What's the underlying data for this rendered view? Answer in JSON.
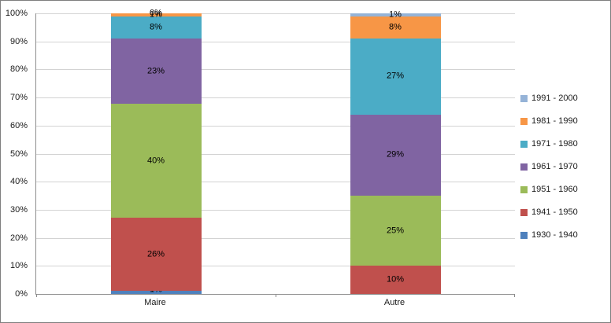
{
  "chart_data": {
    "type": "bar",
    "subtype": "stacked-100-percent",
    "title": "",
    "categories": [
      "Maire",
      "Autre"
    ],
    "series": [
      {
        "name": "1930 - 1940",
        "color": "#4F81BD",
        "values": [
          1,
          0
        ]
      },
      {
        "name": "1941 - 1950",
        "color": "#C0504D",
        "values": [
          26,
          10
        ]
      },
      {
        "name": "1951 - 1960",
        "color": "#9BBB59",
        "values": [
          40,
          25
        ]
      },
      {
        "name": "1961 - 1970",
        "color": "#8064A2",
        "values": [
          23,
          29
        ]
      },
      {
        "name": "1971 - 1980",
        "color": "#4BACC6",
        "values": [
          8,
          27
        ]
      },
      {
        "name": "1981 - 1990",
        "color": "#F79646",
        "values": [
          1,
          8
        ]
      },
      {
        "name": "1991 - 2000",
        "color": "#95B3D7",
        "values": [
          0,
          1
        ]
      }
    ],
    "label_suffix": "%",
    "y_ticks": [
      "0%",
      "10%",
      "20%",
      "30%",
      "40%",
      "50%",
      "60%",
      "70%",
      "80%",
      "90%",
      "100%"
    ],
    "ylim": [
      0,
      100
    ],
    "grid": true,
    "legend_position": "right",
    "legend_order": "reversed-top-to-bottom"
  },
  "colors": {
    "gridline": "#D3D3D3",
    "axis": "#8C8C8C",
    "frame_border": "#7F7F7F",
    "data_label_text": "#000000",
    "tick_label_text": "#1A1A1A"
  }
}
